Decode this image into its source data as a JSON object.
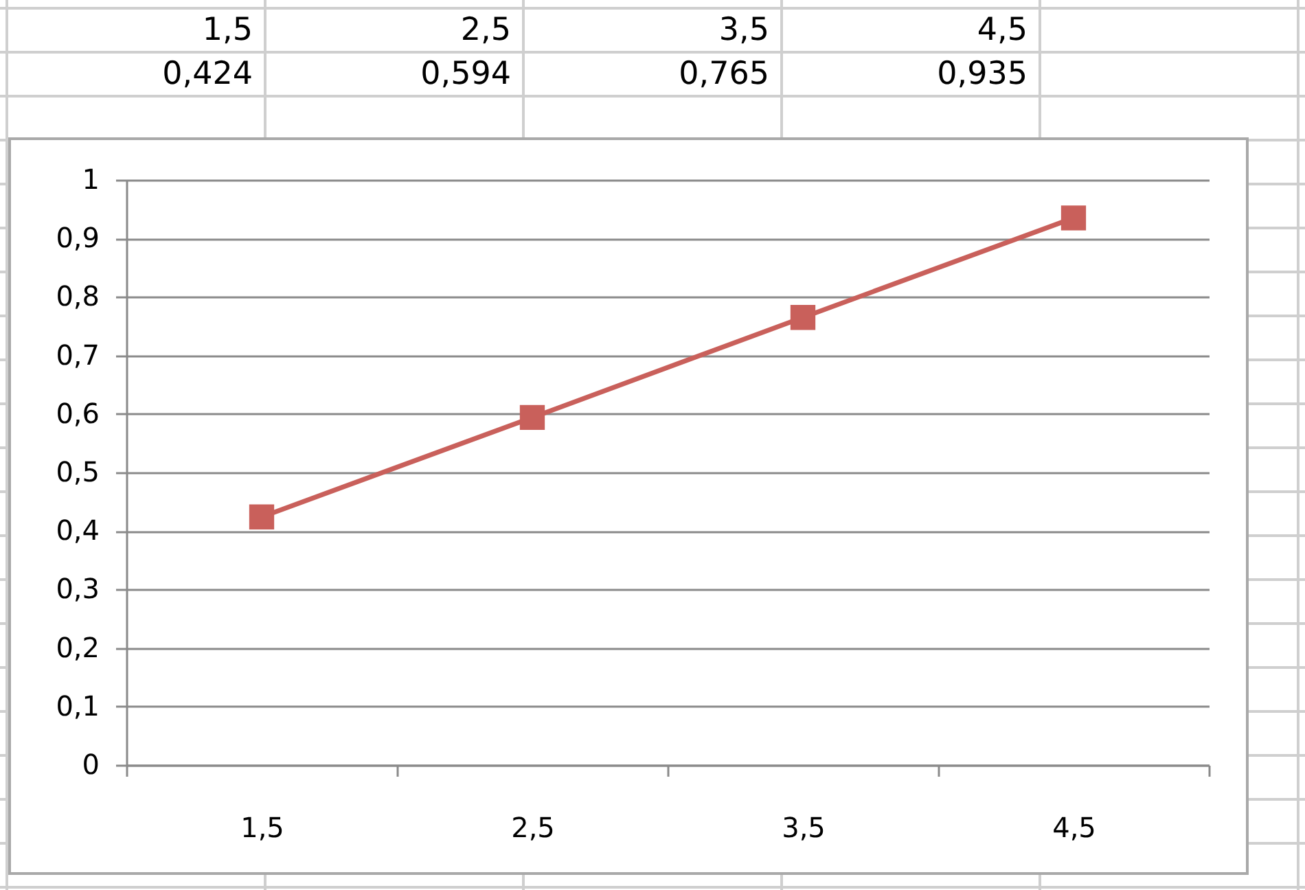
{
  "chart_data": {
    "type": "line",
    "categories": [
      "1,5",
      "2,5",
      "3,5",
      "4,5"
    ],
    "series": [
      {
        "color": "#c9605b",
        "values": [
          0.424,
          0.594,
          0.765,
          0.935
        ],
        "value_labels": [
          "0,424",
          "0,594",
          "0,765",
          "0,935"
        ]
      }
    ],
    "ylim": [
      0,
      1
    ],
    "yticks": [
      0,
      {
        "value": 0.1,
        "label": "0,1"
      },
      {
        "value": 0.2,
        "label": "0,2"
      },
      {
        "value": 0.3,
        "label": "0,3"
      },
      {
        "value": 0.4,
        "label": "0,4"
      },
      {
        "value": 0.5,
        "label": "0,5"
      },
      {
        "value": 0.6,
        "label": "0,6"
      },
      {
        "value": 0.7,
        "label": "0,7"
      },
      {
        "value": 0.8,
        "label": "0,8"
      },
      {
        "value": 0.9,
        "label": "0,9"
      },
      1
    ],
    "grid": "y",
    "marker": "square"
  }
}
